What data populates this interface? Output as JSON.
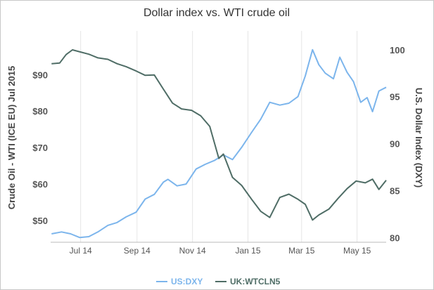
{
  "chart_data": {
    "type": "line",
    "title": "Dollar index vs. WTI crude oil",
    "x_ticks": [
      "Jul 14",
      "Sep 14",
      "Nov 14",
      "Jan 15",
      "Mar 15",
      "May 15"
    ],
    "y_left": {
      "label": "Crude Oil - WTI (ICE EU) Jul 2015",
      "ticks": [
        "$50",
        "$60",
        "$70",
        "$80",
        "$90"
      ],
      "ylim": [
        44,
        102
      ]
    },
    "y_right": {
      "label": "U.S. Dollar Index (DXY)",
      "ticks": [
        "80",
        "85",
        "90",
        "95",
        "100"
      ],
      "ylim": [
        79.5,
        102
      ]
    },
    "grid": "vertical",
    "legend_position": "bottom-center",
    "series": [
      {
        "name": "US:DXY",
        "axis": "right",
        "color": "#7cb5ec",
        "points": [
          [
            "2014-05-30",
            80.4
          ],
          [
            "2014-06-10",
            80.6
          ],
          [
            "2014-06-20",
            80.4
          ],
          [
            "2014-06-30",
            80.0
          ],
          [
            "2014-07-10",
            80.1
          ],
          [
            "2014-07-20",
            80.6
          ],
          [
            "2014-07-31",
            81.3
          ],
          [
            "2014-08-10",
            81.6
          ],
          [
            "2014-08-20",
            82.2
          ],
          [
            "2014-08-31",
            82.7
          ],
          [
            "2014-09-10",
            84.1
          ],
          [
            "2014-09-20",
            84.6
          ],
          [
            "2014-09-30",
            85.9
          ],
          [
            "2014-10-05",
            86.2
          ],
          [
            "2014-10-15",
            85.5
          ],
          [
            "2014-10-25",
            85.7
          ],
          [
            "2014-11-05",
            87.3
          ],
          [
            "2014-11-15",
            87.8
          ],
          [
            "2014-11-25",
            88.2
          ],
          [
            "2014-12-05",
            88.8
          ],
          [
            "2014-12-15",
            88.3
          ],
          [
            "2014-12-25",
            89.6
          ],
          [
            "2015-01-05",
            91.2
          ],
          [
            "2015-01-15",
            92.6
          ],
          [
            "2015-01-25",
            94.4
          ],
          [
            "2015-02-05",
            94.1
          ],
          [
            "2015-02-15",
            94.3
          ],
          [
            "2015-02-25",
            95.0
          ],
          [
            "2015-03-05",
            97.2
          ],
          [
            "2015-03-13",
            100.0
          ],
          [
            "2015-03-20",
            98.4
          ],
          [
            "2015-03-27",
            97.5
          ],
          [
            "2015-04-05",
            96.9
          ],
          [
            "2015-04-12",
            99.2
          ],
          [
            "2015-04-20",
            97.6
          ],
          [
            "2015-04-27",
            96.6
          ],
          [
            "2015-05-05",
            94.4
          ],
          [
            "2015-05-12",
            94.9
          ],
          [
            "2015-05-18",
            93.4
          ],
          [
            "2015-05-25",
            95.6
          ],
          [
            "2015-06-02",
            96.0
          ]
        ]
      },
      {
        "name": "UK:WTCLN5",
        "axis": "left",
        "color": "#4f6d66",
        "points": [
          [
            "2014-05-30",
            93.0
          ],
          [
            "2014-06-08",
            93.2
          ],
          [
            "2014-06-15",
            95.5
          ],
          [
            "2014-06-22",
            96.8
          ],
          [
            "2014-07-01",
            96.2
          ],
          [
            "2014-07-10",
            95.6
          ],
          [
            "2014-07-20",
            94.6
          ],
          [
            "2014-07-31",
            94.2
          ],
          [
            "2014-08-10",
            93.0
          ],
          [
            "2014-08-20",
            92.2
          ],
          [
            "2014-08-31",
            91.0
          ],
          [
            "2014-09-10",
            89.8
          ],
          [
            "2014-09-20",
            89.9
          ],
          [
            "2014-09-30",
            86.0
          ],
          [
            "2014-10-10",
            82.2
          ],
          [
            "2014-10-20",
            80.6
          ],
          [
            "2014-10-31",
            80.2
          ],
          [
            "2014-11-10",
            78.7
          ],
          [
            "2014-11-20",
            75.8
          ],
          [
            "2014-11-30",
            67.0
          ],
          [
            "2014-12-05",
            68.2
          ],
          [
            "2014-12-15",
            61.8
          ],
          [
            "2014-12-25",
            59.6
          ],
          [
            "2015-01-05",
            55.8
          ],
          [
            "2015-01-15",
            52.5
          ],
          [
            "2015-01-25",
            50.8
          ],
          [
            "2015-02-05",
            56.3
          ],
          [
            "2015-02-15",
            57.2
          ],
          [
            "2015-02-25",
            55.8
          ],
          [
            "2015-03-05",
            54.4
          ],
          [
            "2015-03-13",
            50.1
          ],
          [
            "2015-03-20",
            51.5
          ],
          [
            "2015-03-31",
            53.1
          ],
          [
            "2015-04-10",
            56.0
          ],
          [
            "2015-04-20",
            58.7
          ],
          [
            "2015-04-30",
            60.8
          ],
          [
            "2015-05-10",
            60.3
          ],
          [
            "2015-05-18",
            61.3
          ],
          [
            "2015-05-25",
            58.5
          ],
          [
            "2015-06-02",
            61.0
          ]
        ]
      }
    ]
  }
}
